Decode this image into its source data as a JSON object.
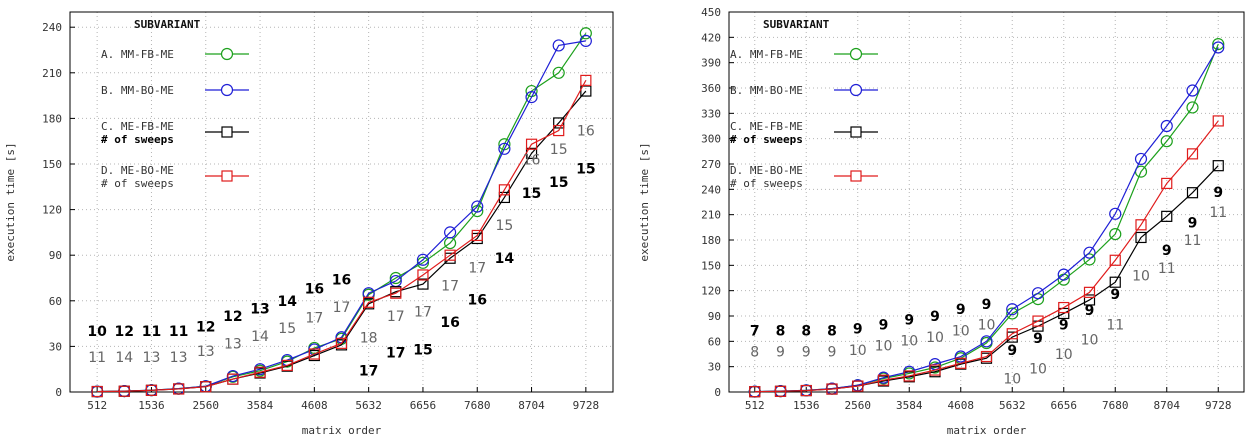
{
  "chart_data": [
    {
      "type": "line",
      "xlabel": "matrix order",
      "ylabel": "execution time [s]",
      "xlim": [
        0,
        10240
      ],
      "ylim": [
        0,
        250
      ],
      "xticks": [
        512,
        1536,
        2560,
        3584,
        4608,
        5632,
        6656,
        7680,
        8704,
        9728
      ],
      "yticks": [
        0,
        30,
        60,
        90,
        120,
        150,
        180,
        210,
        240
      ],
      "x": [
        512,
        1024,
        1536,
        2048,
        2560,
        3072,
        3584,
        4096,
        4608,
        5120,
        5632,
        6144,
        6656,
        7168,
        7680,
        8192,
        8704,
        9216,
        9728
      ],
      "legend": {
        "header": "SUBVARIANT",
        "entries": [
          {
            "lines": [
              "A. MM-FB-ME"
            ],
            "bold": [
              false
            ]
          },
          {
            "lines": [
              "B. MM-BO-ME"
            ],
            "bold": [
              false
            ]
          },
          {
            "lines": [
              "C. ME-FB-ME",
              "# of sweeps"
            ],
            "bold": [
              false,
              true
            ]
          },
          {
            "lines": [
              "D. ME-BO-ME",
              "# of sweeps"
            ],
            "bold": [
              false,
              false
            ]
          }
        ]
      },
      "series": [
        {
          "name": "A. MM-FB-ME",
          "color": "#1ca01c",
          "marker": "circle",
          "values": [
            0.3,
            0.6,
            1.2,
            2.2,
            3.8,
            10,
            14,
            20,
            29,
            35,
            64,
            75,
            85,
            98,
            119,
            163,
            198,
            210,
            236
          ]
        },
        {
          "name": "B. MM-BO-ME",
          "color": "#1f1fd6",
          "marker": "circle",
          "values": [
            0.3,
            0.6,
            1.2,
            2.2,
            3.8,
            10.5,
            15,
            21,
            28,
            36,
            65,
            73,
            87,
            105,
            122,
            160,
            194,
            228,
            231
          ]
        },
        {
          "name": "C. ME-FB-ME",
          "color": "#000000",
          "marker": "square",
          "values": [
            0.3,
            0.5,
            1.1,
            2.0,
            3.5,
            8.5,
            12.5,
            17,
            24,
            31,
            58,
            66,
            71,
            88,
            101,
            128,
            157,
            177,
            198
          ]
        },
        {
          "name": "D. ME-BO-ME",
          "color": "#e01c1c",
          "marker": "square",
          "values": [
            0.3,
            0.5,
            1.1,
            2.0,
            3.5,
            8.5,
            13,
            17.5,
            25,
            32,
            59,
            65,
            77,
            90,
            103,
            133,
            163,
            172,
            205
          ]
        }
      ],
      "annotations": [
        {
          "text": "10",
          "bold": true,
          "x": 512,
          "y": 40
        },
        {
          "text": "11",
          "bold": false,
          "x": 512,
          "y": 23
        },
        {
          "text": "12",
          "bold": true,
          "x": 1024,
          "y": 40
        },
        {
          "text": "14",
          "bold": false,
          "x": 1024,
          "y": 23
        },
        {
          "text": "11",
          "bold": true,
          "x": 1536,
          "y": 40
        },
        {
          "text": "13",
          "bold": false,
          "x": 1536,
          "y": 23
        },
        {
          "text": "11",
          "bold": true,
          "x": 2048,
          "y": 40
        },
        {
          "text": "13",
          "bold": false,
          "x": 2048,
          "y": 23
        },
        {
          "text": "12",
          "bold": true,
          "x": 2560,
          "y": 43
        },
        {
          "text": "13",
          "bold": false,
          "x": 2560,
          "y": 27
        },
        {
          "text": "12",
          "bold": true,
          "x": 3072,
          "y": 50
        },
        {
          "text": "13",
          "bold": false,
          "x": 3072,
          "y": 32
        },
        {
          "text": "13",
          "bold": true,
          "x": 3584,
          "y": 55
        },
        {
          "text": "14",
          "bold": false,
          "x": 3584,
          "y": 37
        },
        {
          "text": "14",
          "bold": true,
          "x": 4096,
          "y": 60
        },
        {
          "text": "15",
          "bold": false,
          "x": 4096,
          "y": 42
        },
        {
          "text": "16",
          "bold": true,
          "x": 4608,
          "y": 68
        },
        {
          "text": "17",
          "bold": false,
          "x": 4608,
          "y": 49
        },
        {
          "text": "16",
          "bold": true,
          "x": 5120,
          "y": 74
        },
        {
          "text": "17",
          "bold": false,
          "x": 5120,
          "y": 56
        },
        {
          "text": "18",
          "bold": false,
          "x": 5632,
          "y": 36
        },
        {
          "text": "17",
          "bold": true,
          "x": 5632,
          "y": 14
        },
        {
          "text": "17",
          "bold": false,
          "x": 6144,
          "y": 50
        },
        {
          "text": "17",
          "bold": true,
          "x": 6144,
          "y": 26
        },
        {
          "text": "17",
          "bold": false,
          "x": 6656,
          "y": 53
        },
        {
          "text": "15",
          "bold": true,
          "x": 6656,
          "y": 28
        },
        {
          "text": "17",
          "bold": false,
          "x": 7168,
          "y": 70
        },
        {
          "text": "16",
          "bold": true,
          "x": 7168,
          "y": 46
        },
        {
          "text": "17",
          "bold": false,
          "x": 7680,
          "y": 82
        },
        {
          "text": "16",
          "bold": true,
          "x": 7680,
          "y": 61
        },
        {
          "text": "15",
          "bold": false,
          "x": 8192,
          "y": 110
        },
        {
          "text": "14",
          "bold": true,
          "x": 8192,
          "y": 88
        },
        {
          "text": "16",
          "bold": false,
          "x": 8704,
          "y": 153
        },
        {
          "text": "15",
          "bold": true,
          "x": 8704,
          "y": 131
        },
        {
          "text": "15",
          "bold": false,
          "x": 9216,
          "y": 160
        },
        {
          "text": "15",
          "bold": true,
          "x": 9216,
          "y": 138
        },
        {
          "text": "16",
          "bold": false,
          "x": 9728,
          "y": 172
        },
        {
          "text": "15",
          "bold": true,
          "x": 9728,
          "y": 147
        }
      ]
    },
    {
      "type": "line",
      "xlabel": "matrix order",
      "ylabel": "execution time [s]",
      "xlim": [
        0,
        10240
      ],
      "ylim": [
        0,
        450
      ],
      "xticks": [
        512,
        1536,
        2560,
        3584,
        4608,
        5632,
        6656,
        7680,
        8704,
        9728
      ],
      "yticks": [
        0,
        30,
        60,
        90,
        120,
        150,
        180,
        210,
        240,
        270,
        300,
        330,
        360,
        390,
        420,
        450
      ],
      "x": [
        512,
        1024,
        1536,
        2048,
        2560,
        3072,
        3584,
        4096,
        4608,
        5120,
        5632,
        6144,
        6656,
        7168,
        7680,
        8192,
        8704,
        9216,
        9728
      ],
      "legend": {
        "header": "SUBVARIANT",
        "entries": [
          {
            "lines": [
              "A. MM-FB-ME"
            ],
            "bold": [
              false
            ]
          },
          {
            "lines": [
              "B. MM-BO-ME"
            ],
            "bold": [
              false
            ]
          },
          {
            "lines": [
              "C. ME-FB-ME",
              "# of sweeps"
            ],
            "bold": [
              false,
              true
            ]
          },
          {
            "lines": [
              "D. ME-BO-ME",
              "# of sweeps"
            ],
            "bold": [
              false,
              false
            ]
          }
        ]
      },
      "series": [
        {
          "name": "A. MM-FB-ME",
          "color": "#1ca01c",
          "marker": "circle",
          "values": [
            0.5,
            1,
            2,
            4,
            8,
            16,
            22,
            29,
            40,
            58,
            93,
            110,
            133,
            157,
            187,
            261,
            297,
            337,
            412
          ]
        },
        {
          "name": "B. MM-BO-ME",
          "color": "#1f1fd6",
          "marker": "circle",
          "values": [
            0.5,
            1,
            2,
            4,
            8,
            17,
            24,
            33,
            42,
            60,
            98,
            117,
            139,
            165,
            211,
            276,
            315,
            357,
            408
          ]
        },
        {
          "name": "C. ME-FB-ME",
          "color": "#000000",
          "marker": "square",
          "values": [
            0.4,
            0.8,
            1.7,
            3.5,
            7,
            13,
            18,
            24,
            33,
            40,
            65,
            78,
            93,
            109,
            130,
            183,
            208,
            236,
            268
          ]
        },
        {
          "name": "D. ME-BO-ME",
          "color": "#e01c1c",
          "marker": "square",
          "values": [
            0.4,
            0.8,
            1.7,
            3.5,
            7,
            14,
            19,
            26,
            34,
            42,
            69,
            84,
            100,
            118,
            156,
            198,
            247,
            282,
            321
          ]
        }
      ],
      "annotations": [
        {
          "text": "7",
          "bold": true,
          "x": 512,
          "y": 73
        },
        {
          "text": "8",
          "bold": false,
          "x": 512,
          "y": 48
        },
        {
          "text": "8",
          "bold": true,
          "x": 1024,
          "y": 73
        },
        {
          "text": "9",
          "bold": false,
          "x": 1024,
          "y": 48
        },
        {
          "text": "8",
          "bold": true,
          "x": 1536,
          "y": 73
        },
        {
          "text": "9",
          "bold": false,
          "x": 1536,
          "y": 48
        },
        {
          "text": "8",
          "bold": true,
          "x": 2048,
          "y": 73
        },
        {
          "text": "9",
          "bold": false,
          "x": 2048,
          "y": 48
        },
        {
          "text": "9",
          "bold": true,
          "x": 2560,
          "y": 75
        },
        {
          "text": "10",
          "bold": false,
          "x": 2560,
          "y": 50
        },
        {
          "text": "9",
          "bold": true,
          "x": 3072,
          "y": 80
        },
        {
          "text": "10",
          "bold": false,
          "x": 3072,
          "y": 55
        },
        {
          "text": "9",
          "bold": true,
          "x": 3584,
          "y": 86
        },
        {
          "text": "10",
          "bold": false,
          "x": 3584,
          "y": 61
        },
        {
          "text": "9",
          "bold": true,
          "x": 4096,
          "y": 90
        },
        {
          "text": "10",
          "bold": false,
          "x": 4096,
          "y": 65
        },
        {
          "text": "9",
          "bold": true,
          "x": 4608,
          "y": 98
        },
        {
          "text": "10",
          "bold": false,
          "x": 4608,
          "y": 73
        },
        {
          "text": "9",
          "bold": true,
          "x": 5120,
          "y": 104
        },
        {
          "text": "10",
          "bold": false,
          "x": 5120,
          "y": 80
        },
        {
          "text": "9",
          "bold": true,
          "x": 5632,
          "y": 50
        },
        {
          "text": "10",
          "bold": false,
          "x": 5632,
          "y": 16
        },
        {
          "text": "9",
          "bold": true,
          "x": 6144,
          "y": 64
        },
        {
          "text": "10",
          "bold": false,
          "x": 6144,
          "y": 28
        },
        {
          "text": "9",
          "bold": true,
          "x": 6656,
          "y": 80
        },
        {
          "text": "10",
          "bold": false,
          "x": 6656,
          "y": 45
        },
        {
          "text": "9",
          "bold": true,
          "x": 7168,
          "y": 97
        },
        {
          "text": "10",
          "bold": false,
          "x": 7168,
          "y": 62
        },
        {
          "text": "9",
          "bold": true,
          "x": 7680,
          "y": 116
        },
        {
          "text": "11",
          "bold": false,
          "x": 7680,
          "y": 80
        },
        {
          "text": "10",
          "bold": false,
          "x": 8192,
          "y": 138
        },
        {
          "text": "9",
          "bold": true,
          "x": 8704,
          "y": 168
        },
        {
          "text": "11",
          "bold": false,
          "x": 8704,
          "y": 147
        },
        {
          "text": "9",
          "bold": true,
          "x": 9216,
          "y": 201
        },
        {
          "text": "11",
          "bold": false,
          "x": 9216,
          "y": 180
        },
        {
          "text": "9",
          "bold": true,
          "x": 9728,
          "y": 237
        },
        {
          "text": "11",
          "bold": false,
          "x": 9728,
          "y": 213
        }
      ]
    }
  ]
}
